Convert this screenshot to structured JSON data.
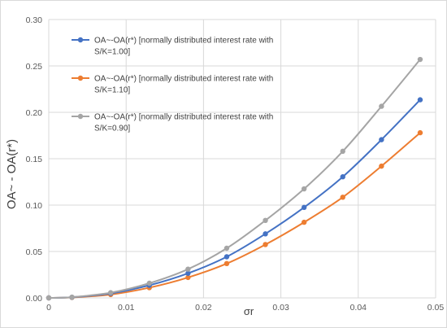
{
  "chart_data": {
    "type": "line",
    "xlabel": "σr",
    "ylabel": "OA~ - OA(r*)",
    "xlim": [
      0,
      0.05
    ],
    "ylim": [
      0,
      0.3
    ],
    "x_ticks": [
      "0",
      "0.01",
      "0.02",
      "0.03",
      "0.04",
      "0.05"
    ],
    "y_ticks": [
      "0.00",
      "0.05",
      "0.10",
      "0.15",
      "0.20",
      "0.25",
      "0.30"
    ],
    "grid": "vertical and horizontal",
    "legend_position": "top-left",
    "x": [
      0,
      0.003,
      0.008,
      0.013,
      0.018,
      0.023,
      0.028,
      0.033,
      0.038,
      0.043,
      0.048
    ],
    "series": [
      {
        "name_lines": [
          "OA~-OA(r*) [normally distributed interest rate with",
          "S/K=1.00]"
        ],
        "color": "#4472c4",
        "values": [
          0,
          0.0007,
          0.0048,
          0.0136,
          0.0265,
          0.0443,
          0.069,
          0.0975,
          0.1305,
          0.1705,
          0.2135
        ]
      },
      {
        "name_lines": [
          "OA~-OA(r*) [normally distributed interest rate with",
          "S/K=1.10]"
        ],
        "color": "#ed7d31",
        "values": [
          0,
          0.0005,
          0.0036,
          0.011,
          0.022,
          0.037,
          0.0575,
          0.0815,
          0.1085,
          0.142,
          0.178
        ]
      },
      {
        "name_lines": [
          "OA~-OA(r*) [normally distributed interest rate with",
          "S/K=0.90]"
        ],
        "color": "#a5a5a5",
        "values": [
          0,
          0.0008,
          0.0056,
          0.0158,
          0.031,
          0.0535,
          0.0835,
          0.1175,
          0.158,
          0.2065,
          0.257
        ]
      }
    ]
  }
}
